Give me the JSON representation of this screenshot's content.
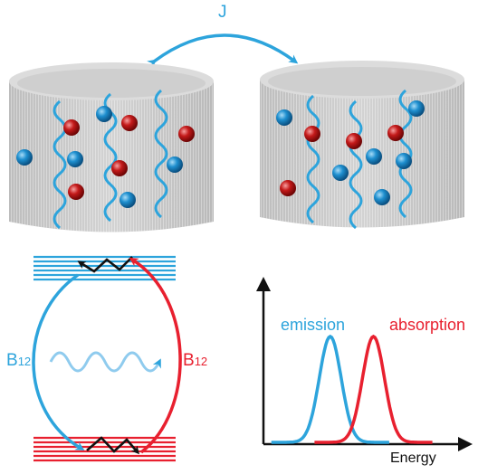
{
  "labels": {
    "coupling": "J",
    "b_left_main": "B",
    "b_left_sub": "12",
    "b_right_main": "B",
    "b_right_sub": "12",
    "emission": "emission",
    "absorption": "absorption",
    "x_axis": "Energy"
  },
  "colors": {
    "blue": "#2da4dc",
    "red": "#e8202f",
    "black": "#111111",
    "cylinder_body": "#c9c9c9",
    "cylinder_top": "#dcdcdc",
    "bead_blue": "#1e8fcf",
    "bead_red": "#c41a1a"
  },
  "chart_data": {
    "type": "line",
    "title": "",
    "xlabel": "Energy",
    "ylabel": "",
    "series": [
      {
        "name": "emission",
        "color": "#2da4dc",
        "peak_position": 0.34,
        "width": 0.1
      },
      {
        "name": "absorption",
        "color": "#e8202f",
        "peak_position": 0.56,
        "width": 0.1
      }
    ],
    "grid": false,
    "legend": "above-peaks"
  }
}
